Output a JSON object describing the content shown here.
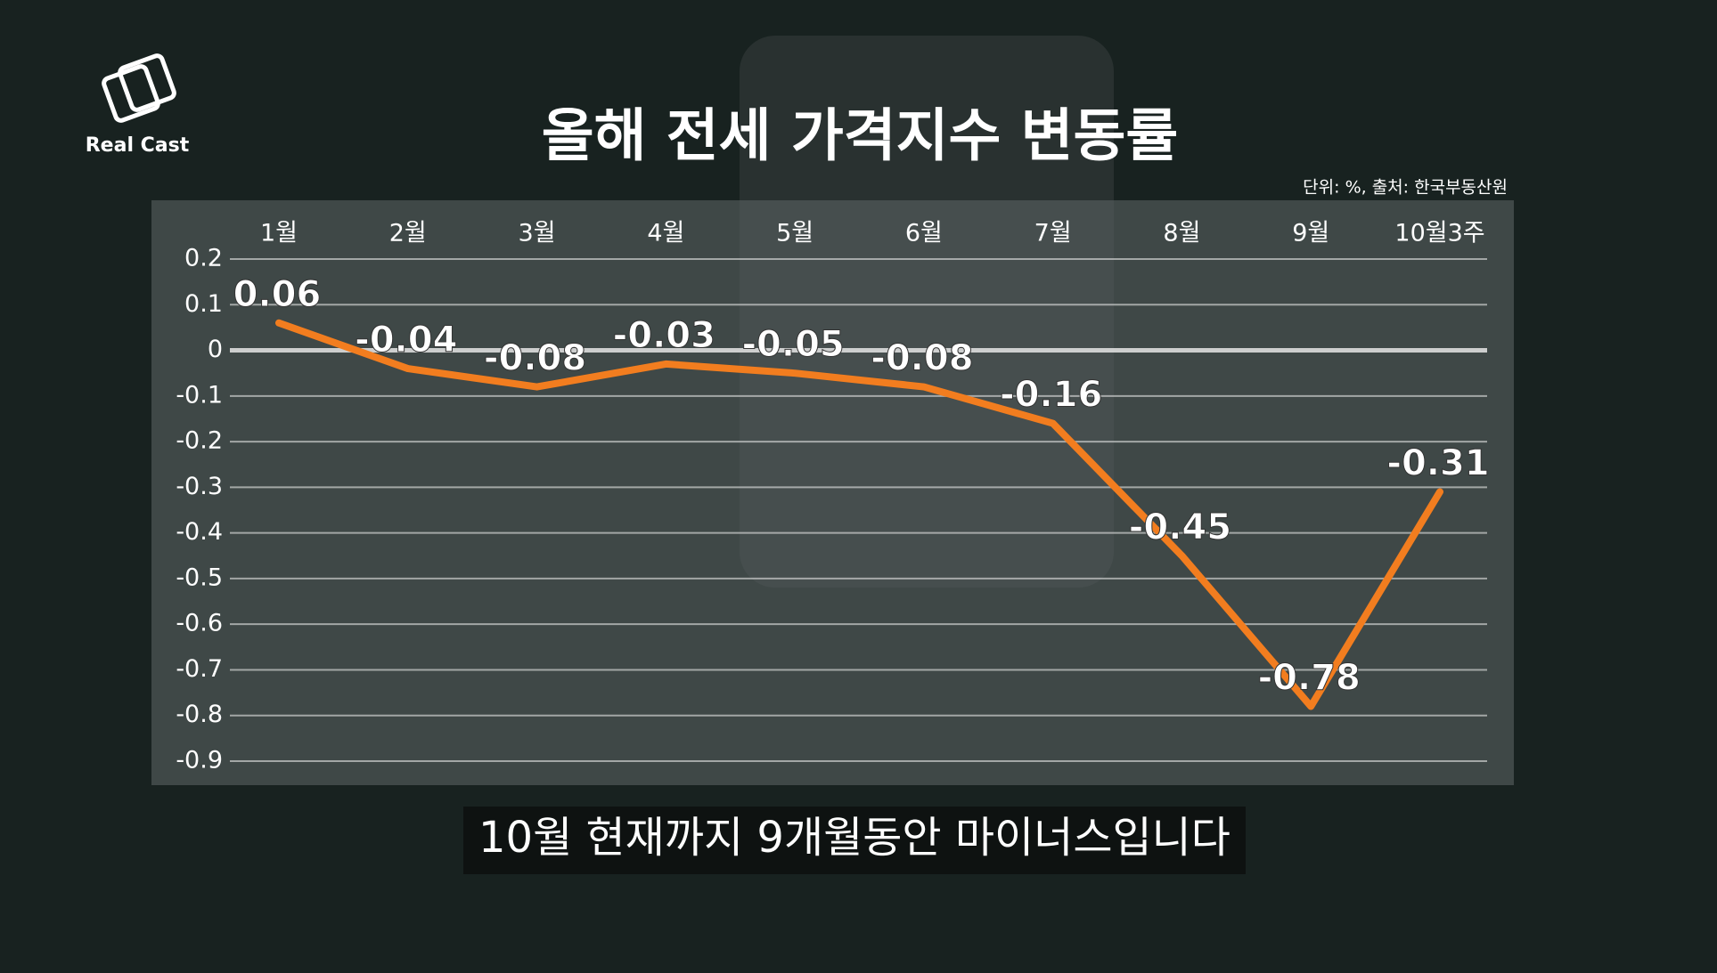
{
  "logo": "Real Cast",
  "caption": "10월 현재까지 9개월동안 마이너스입니다",
  "chart_data": {
    "type": "line",
    "title": "올해 전세 가격지수 변동률",
    "source": "단위: %, 출처: 한국부동산원",
    "categories": [
      "1월",
      "2월",
      "3월",
      "4월",
      "5월",
      "6월",
      "7월",
      "8월",
      "9월",
      "10월3주"
    ],
    "series": [
      {
        "name": "전세 가격지수 변동률",
        "color": "#f27d1f",
        "values": [
          0.06,
          -0.04,
          -0.08,
          -0.03,
          -0.05,
          -0.08,
          -0.16,
          -0.45,
          -0.78,
          -0.31
        ]
      }
    ],
    "ylim": [
      -0.9,
      0.2
    ],
    "yticks": [
      0.2,
      0.1,
      0,
      -0.1,
      -0.2,
      -0.3,
      -0.4,
      -0.5,
      -0.6,
      -0.7,
      -0.8,
      -0.9
    ],
    "grid": true
  }
}
